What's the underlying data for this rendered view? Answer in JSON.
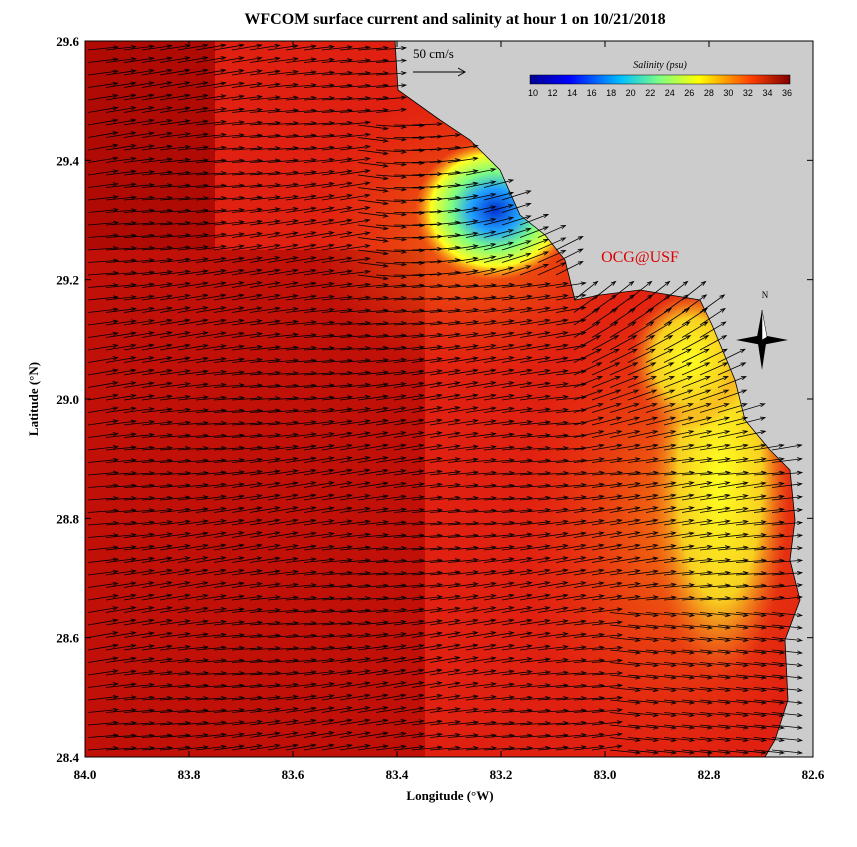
{
  "title": "WFCOM surface current and salinity at hour 1 on 10/21/2018",
  "x_axis": {
    "label": "Longitude (°W)",
    "ticks": [
      "84.0",
      "83.8",
      "83.6",
      "83.4",
      "83.2",
      "83.0",
      "82.8",
      "82.6"
    ]
  },
  "y_axis": {
    "label": "Latitude (°N)",
    "ticks": [
      "29.6",
      "29.4",
      "29.2",
      "29.0",
      "28.8",
      "28.6",
      "28.4"
    ]
  },
  "scale_label": "50 cm/s",
  "colorbar": {
    "title": "Salinity (psu)",
    "ticks": [
      "10",
      "12",
      "14",
      "16",
      "18",
      "20",
      "22",
      "24",
      "26",
      "28",
      "30",
      "32",
      "34",
      "36"
    ]
  },
  "watermark": "OCG@USF",
  "compass": "N"
}
